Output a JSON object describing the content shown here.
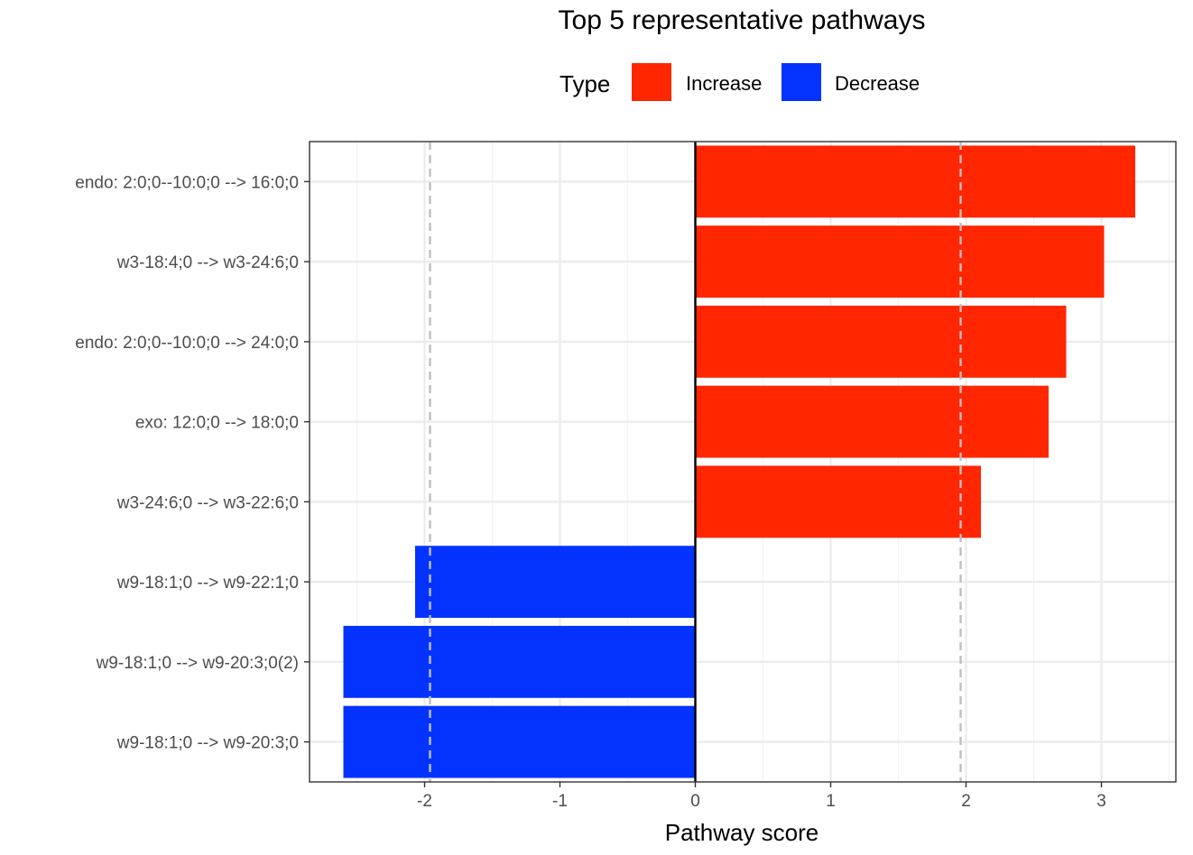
{
  "chart_data": {
    "type": "bar",
    "orientation": "horizontal",
    "title": "Top 5 representative pathways",
    "xlabel": "Pathway score",
    "ylabel": "",
    "xlim": [
      -2.85,
      3.55
    ],
    "xticks": [
      -2,
      -1,
      0,
      1,
      2,
      3
    ],
    "reference_lines": [
      -1.96,
      1.96
    ],
    "grid": true,
    "legend": {
      "title": "Type",
      "position": "top",
      "entries": [
        {
          "label": "Increase",
          "color": "#ff2600"
        },
        {
          "label": "Decrease",
          "color": "#0433ff"
        }
      ]
    },
    "categories": [
      "endo: 2:0;0--10:0;0 --> 16:0;0",
      "w3-18:4;0 --> w3-24:6;0",
      "endo: 2:0;0--10:0;0 --> 24:0;0",
      "exo: 12:0;0 --> 18:0;0",
      "w3-24:6;0 --> w3-22:6;0",
      "w9-18:1;0 --> w9-22:1;0",
      "w9-18:1;0 --> w9-20:3;0(2)",
      "w9-18:1;0 --> w9-20:3;0"
    ],
    "values": [
      3.25,
      3.02,
      2.74,
      2.61,
      2.11,
      -2.07,
      -2.6,
      -2.6
    ],
    "types": [
      "Increase",
      "Increase",
      "Increase",
      "Increase",
      "Increase",
      "Decrease",
      "Decrease",
      "Decrease"
    ]
  }
}
